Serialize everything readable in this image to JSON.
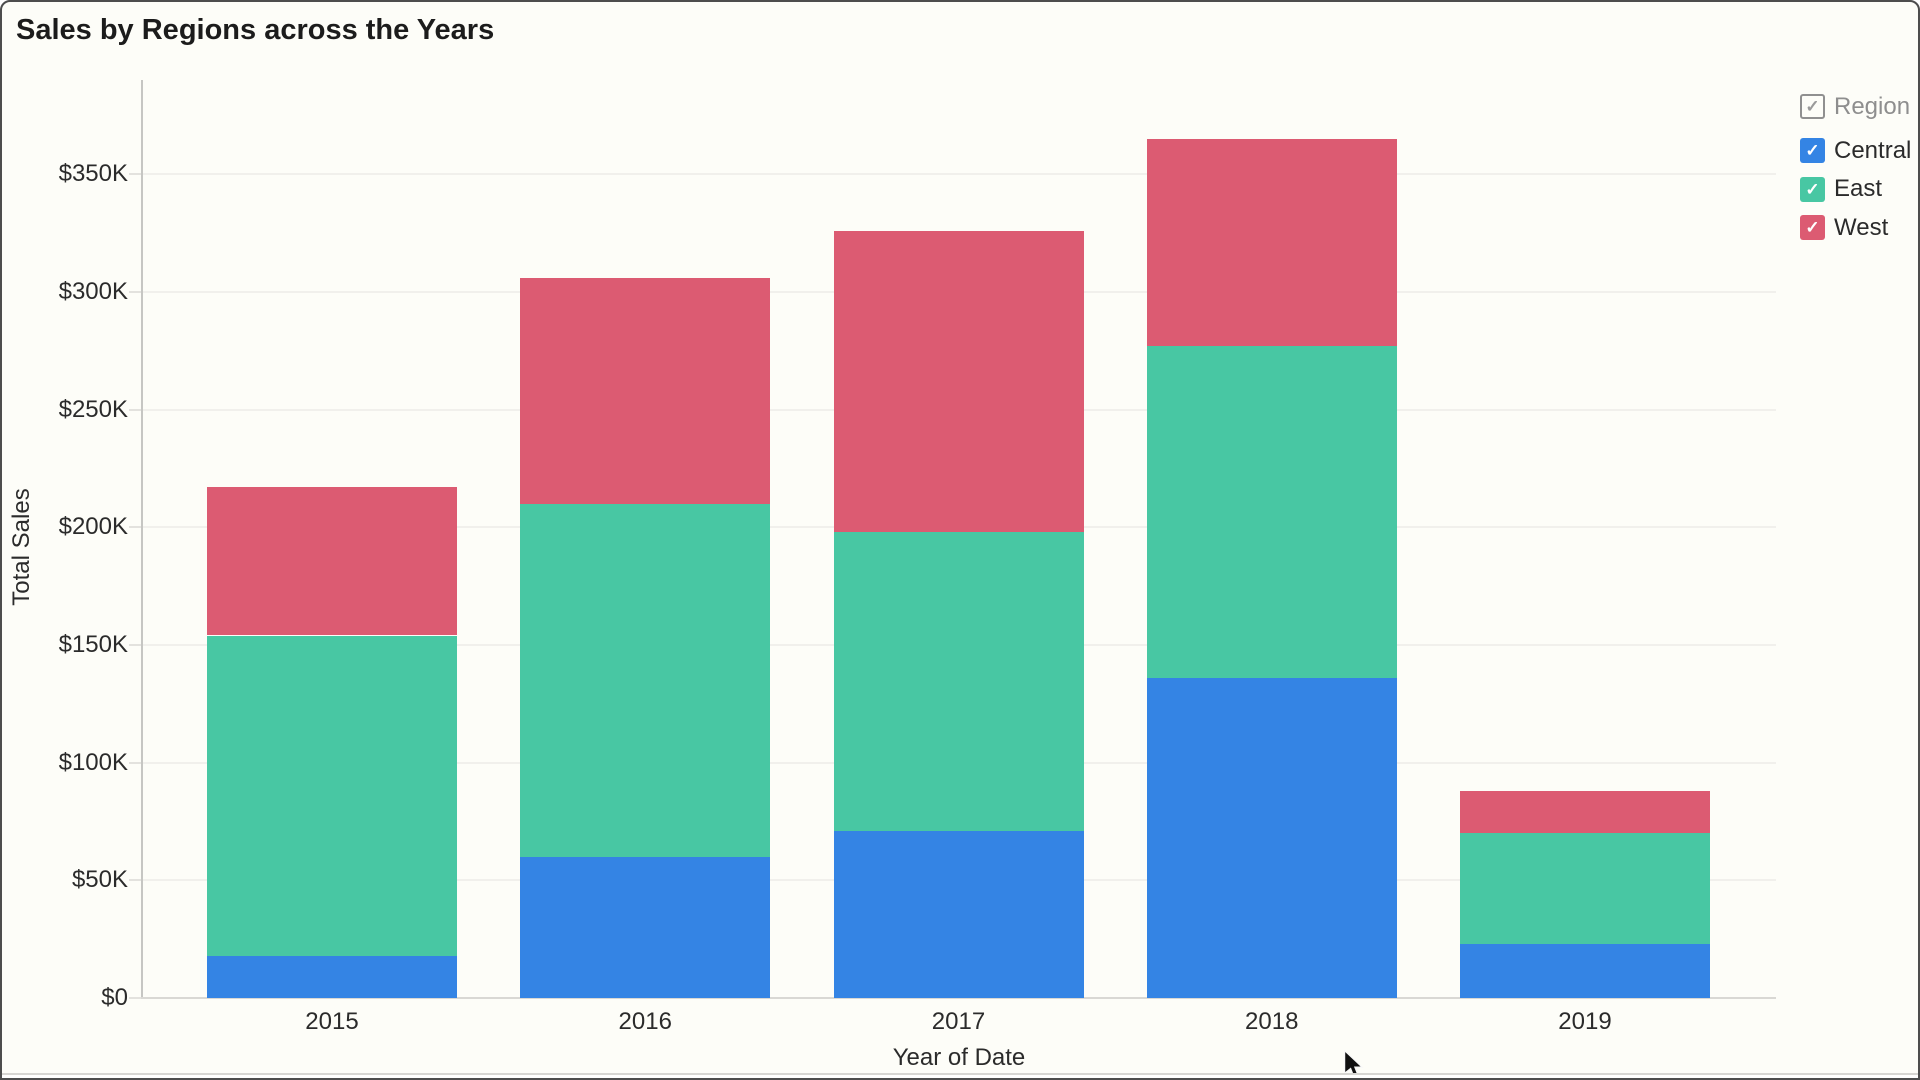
{
  "window": {
    "title": "Sales by Regions across the Years"
  },
  "chart_data": {
    "type": "bar",
    "stacked": true,
    "title": "Sales by Regions across the Years",
    "xlabel": "Year of Date",
    "ylabel": "Total Sales",
    "categories": [
      "2015",
      "2016",
      "2017",
      "2018",
      "2019"
    ],
    "series": [
      {
        "name": "Central",
        "color": "#3484E4",
        "values": [
          18000,
          60000,
          71000,
          136000,
          23000
        ]
      },
      {
        "name": "East",
        "color": "#48C7A3",
        "values": [
          136000,
          150000,
          127000,
          141000,
          47000
        ]
      },
      {
        "name": "West",
        "color": "#DC5B72",
        "values": [
          63000,
          96000,
          128000,
          88000,
          18000
        ]
      }
    ],
    "ylim": [
      0,
      390000
    ],
    "yticks": [
      0,
      50000,
      100000,
      150000,
      200000,
      250000,
      300000,
      350000
    ],
    "ytick_labels": [
      "$0",
      "$50K",
      "$100K",
      "$150K",
      "$200K",
      "$250K",
      "$300K",
      "$350K"
    ],
    "grid": true,
    "legend_position": "top-right"
  },
  "legend": {
    "header_label": "Region",
    "checkmark": "✓",
    "items": [
      {
        "label": "Central",
        "color": "#3484E4",
        "checked": true
      },
      {
        "label": "East",
        "color": "#48C7A3",
        "checked": true
      },
      {
        "label": "West",
        "color": "#DC5B72",
        "checked": true
      }
    ]
  },
  "colors": {
    "background": "#FDFDF8",
    "gridline": "#F1F0EC",
    "axis_line": "#C6C6C3",
    "baseline": "#D9D8D4",
    "title_text": "#1C1C1C",
    "tick_text": "#2B2B2B",
    "legend_header_text": "#8E8E8E",
    "legend_item_text": "#2B2B2B"
  }
}
